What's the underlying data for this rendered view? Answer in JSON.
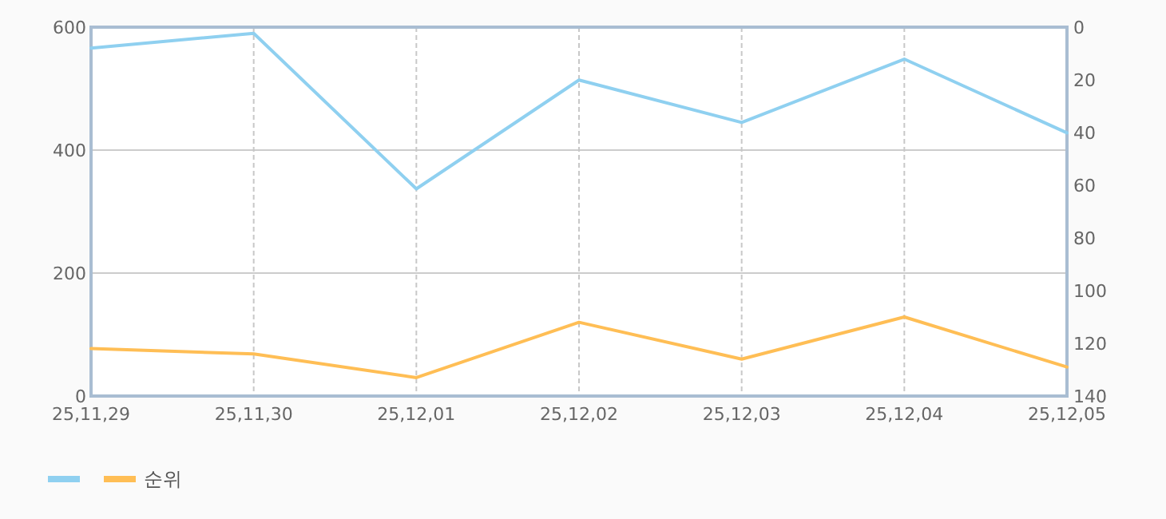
{
  "chart_data": {
    "type": "line",
    "categories": [
      "25,11,29",
      "25,11,30",
      "25,12,01",
      "25,12,02",
      "25,12,03",
      "25,12,04",
      "25,12,05"
    ],
    "series": [
      {
        "color": "#8fd0f0",
        "values": [
          566,
          590,
          337,
          514,
          445,
          548,
          428
        ]
      },
      {
        "name": "순위",
        "color": "#ffbe55",
        "axis": "y2",
        "values": [
          122,
          124,
          133,
          112,
          126,
          110,
          129
        ]
      }
    ],
    "ylim": [
      0,
      600
    ],
    "yticks": [
      0,
      200,
      400,
      600
    ],
    "y2lim": [
      140,
      0
    ],
    "y2ticks": [
      0,
      20,
      40,
      60,
      80,
      100,
      120,
      140
    ],
    "grid": true,
    "legend": "bottom left",
    "marker": "none",
    "line_style": "solid"
  }
}
